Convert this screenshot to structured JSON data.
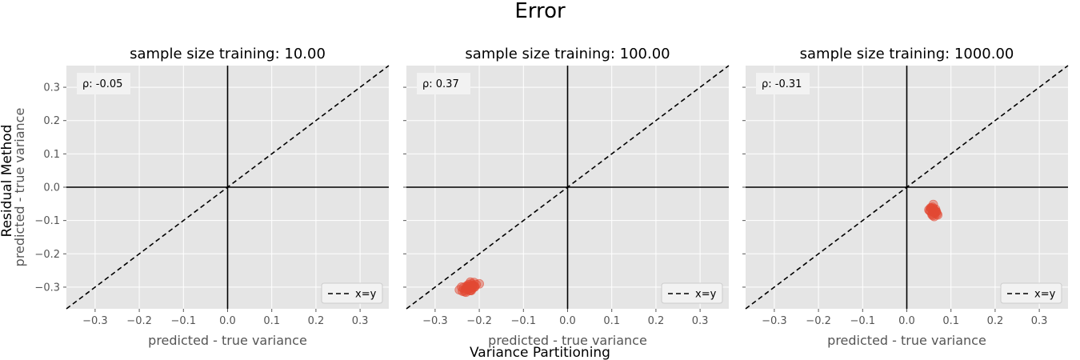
{
  "figure": {
    "title": "Error",
    "xlabel": "Variance Partitioning",
    "ylabel": "Residual Method"
  },
  "colors": {
    "panel_bg": "#e5e5e5",
    "grid": "#ffffff",
    "points": "#e24a33",
    "axis_lines": "#000000"
  },
  "chart_data": [
    {
      "type": "scatter",
      "title": "sample size training: 10.00",
      "xlabel": "predicted - true variance",
      "ylabel": "predicted - true variance",
      "annotation": "ρ: -0.05",
      "legend": [
        {
          "label": "x=y",
          "style": "dashed"
        }
      ],
      "legend_position": "lower-right",
      "xlim": [
        -0.365,
        0.365
      ],
      "ylim": [
        -0.365,
        0.365
      ],
      "xticks": [
        "−0.3",
        "−0.2",
        "−0.1",
        "0.0",
        "0.1",
        "0.2",
        "0.3"
      ],
      "yticks": [
        "−0.3",
        "−0.2",
        "−0.1",
        "0.0",
        "0.1",
        "0.2",
        "0.3"
      ],
      "grid": true,
      "x": [],
      "y": []
    },
    {
      "type": "scatter",
      "title": "sample size training: 100.00",
      "xlabel": "predicted - true variance",
      "annotation": "ρ: 0.37",
      "legend": [
        {
          "label": "x=y",
          "style": "dashed"
        }
      ],
      "legend_position": "lower-right",
      "xlim": [
        -0.365,
        0.365
      ],
      "ylim": [
        -0.365,
        0.365
      ],
      "xticks": [
        "−0.3",
        "−0.2",
        "−0.1",
        "0.0",
        "0.1",
        "0.2",
        "0.3"
      ],
      "grid": true,
      "x": [
        -0.245,
        -0.238,
        -0.232,
        -0.228,
        -0.225,
        -0.222,
        -0.219,
        -0.216,
        -0.213,
        -0.21,
        -0.236,
        -0.23,
        -0.226,
        -0.221,
        -0.217,
        -0.214,
        -0.229,
        -0.224,
        -0.218,
        -0.212,
        -0.233,
        -0.227,
        -0.22,
        -0.215,
        -0.207,
        -0.24,
        -0.223,
        -0.218,
        -0.211,
        -0.2,
        -0.231,
        -0.226,
        -0.22
      ],
      "y": [
        -0.308,
        -0.312,
        -0.31,
        -0.305,
        -0.3,
        -0.298,
        -0.302,
        -0.296,
        -0.295,
        -0.298,
        -0.302,
        -0.315,
        -0.308,
        -0.31,
        -0.305,
        -0.3,
        -0.297,
        -0.292,
        -0.29,
        -0.286,
        -0.314,
        -0.3,
        -0.285,
        -0.294,
        -0.292,
        -0.3,
        -0.305,
        -0.31,
        -0.3,
        -0.29,
        -0.305,
        -0.296,
        -0.31
      ]
    },
    {
      "type": "scatter",
      "title": "sample size training: 1000.00",
      "xlabel": "predicted - true variance",
      "annotation": "ρ: -0.31",
      "legend": [
        {
          "label": "x=y",
          "style": "dashed"
        }
      ],
      "legend_position": "lower-right",
      "xlim": [
        -0.365,
        0.365
      ],
      "ylim": [
        -0.365,
        0.365
      ],
      "xticks": [
        "−0.3",
        "−0.2",
        "−0.1",
        "0.0",
        "0.1",
        "0.2",
        "0.3"
      ],
      "grid": true,
      "x": [
        0.05,
        0.053,
        0.056,
        0.058,
        0.06,
        0.062,
        0.064,
        0.066,
        0.068,
        0.07,
        0.055,
        0.059,
        0.063,
        0.061,
        0.057,
        0.065,
        0.067,
        0.052,
        0.054,
        0.06,
        0.062,
        0.058,
        0.064,
        0.06
      ],
      "y": [
        -0.068,
        -0.072,
        -0.065,
        -0.06,
        -0.075,
        -0.07,
        -0.078,
        -0.073,
        -0.08,
        -0.083,
        -0.063,
        -0.085,
        -0.077,
        -0.068,
        -0.082,
        -0.066,
        -0.074,
        -0.07,
        -0.062,
        -0.052,
        -0.088,
        -0.079,
        -0.071,
        -0.064
      ]
    }
  ]
}
